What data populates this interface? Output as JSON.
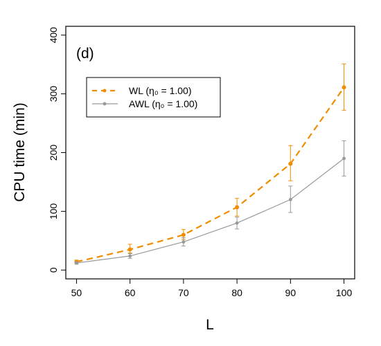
{
  "chart_data": {
    "type": "line",
    "panel_label": "(d)",
    "xlabel": "L",
    "ylabel": "CPU time (min)",
    "x": [
      50,
      60,
      70,
      80,
      90,
      100
    ],
    "x_ticks": [
      "50",
      "60",
      "70",
      "80",
      "90",
      "100"
    ],
    "xlim": [
      48,
      102
    ],
    "ylim": [
      -15,
      415
    ],
    "y_ticks": [
      "0",
      "100",
      "200",
      "300",
      "400"
    ],
    "grid": false,
    "legend_position": "top-left",
    "series": [
      {
        "name": "WL",
        "legend_suffix": " (η₀ = 1.00)",
        "color": "#F08C00",
        "style": "dashed",
        "values": [
          14,
          35,
          60,
          107,
          181,
          311
        ],
        "error_low": [
          12,
          29,
          52,
          92,
          152,
          272
        ],
        "error_high": [
          17,
          44,
          69,
          122,
          212,
          351
        ]
      },
      {
        "name": "AWL",
        "legend_suffix": " (η₀ = 1.00)",
        "color": "#999999",
        "style": "solid",
        "values": [
          12,
          24,
          48,
          80,
          120,
          190
        ],
        "error_low": [
          10,
          20,
          41,
          70,
          98,
          160
        ],
        "error_high": [
          14,
          28,
          55,
          90,
          143,
          220
        ]
      }
    ]
  }
}
